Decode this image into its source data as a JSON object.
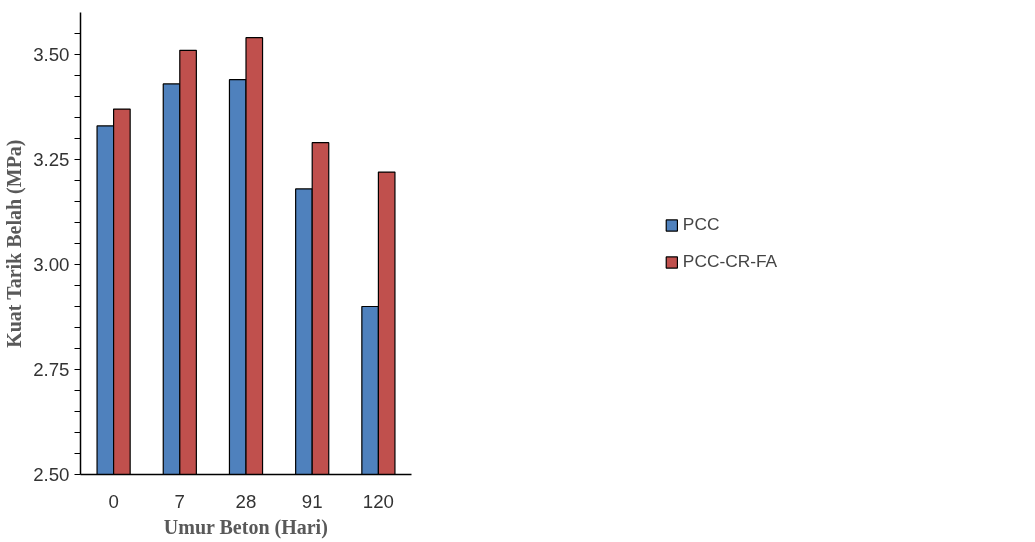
{
  "chart_data": {
    "type": "bar",
    "xlabel": "Umur Beton (Hari)",
    "ylabel": "Kuat Tarik Belah (MPa)",
    "categories": [
      "0",
      "7",
      "28",
      "91",
      "120"
    ],
    "series": [
      {
        "name": "PCC",
        "color": "#4f81bd",
        "values": [
          3.33,
          3.43,
          3.44,
          3.18,
          2.9
        ]
      },
      {
        "name": "PCC-CR-FA",
        "color": "#c0504d",
        "values": [
          3.37,
          3.51,
          3.54,
          3.29,
          3.22
        ]
      }
    ],
    "ylim": [
      2.5,
      3.6
    ],
    "yticks": [
      {
        "value": 2.5,
        "label": "2.50"
      },
      {
        "value": 2.55,
        "label": null
      },
      {
        "value": 2.6,
        "label": null
      },
      {
        "value": 2.65,
        "label": null
      },
      {
        "value": 2.7,
        "label": null
      },
      {
        "value": 2.75,
        "label": "2.75"
      },
      {
        "value": 2.8,
        "label": null
      },
      {
        "value": 2.85,
        "label": null
      },
      {
        "value": 2.9,
        "label": null
      },
      {
        "value": 2.95,
        "label": null
      },
      {
        "value": 3.0,
        "label": "3.00"
      },
      {
        "value": 3.05,
        "label": null
      },
      {
        "value": 3.1,
        "label": null
      },
      {
        "value": 3.15,
        "label": null
      },
      {
        "value": 3.2,
        "label": null
      },
      {
        "value": 3.25,
        "label": "3.25"
      },
      {
        "value": 3.3,
        "label": null
      },
      {
        "value": 3.35,
        "label": null
      },
      {
        "value": 3.4,
        "label": null
      },
      {
        "value": 3.45,
        "label": null
      },
      {
        "value": 3.5,
        "label": "3.50"
      },
      {
        "value": 3.55,
        "label": null
      }
    ],
    "grid": false,
    "legend": "right"
  }
}
